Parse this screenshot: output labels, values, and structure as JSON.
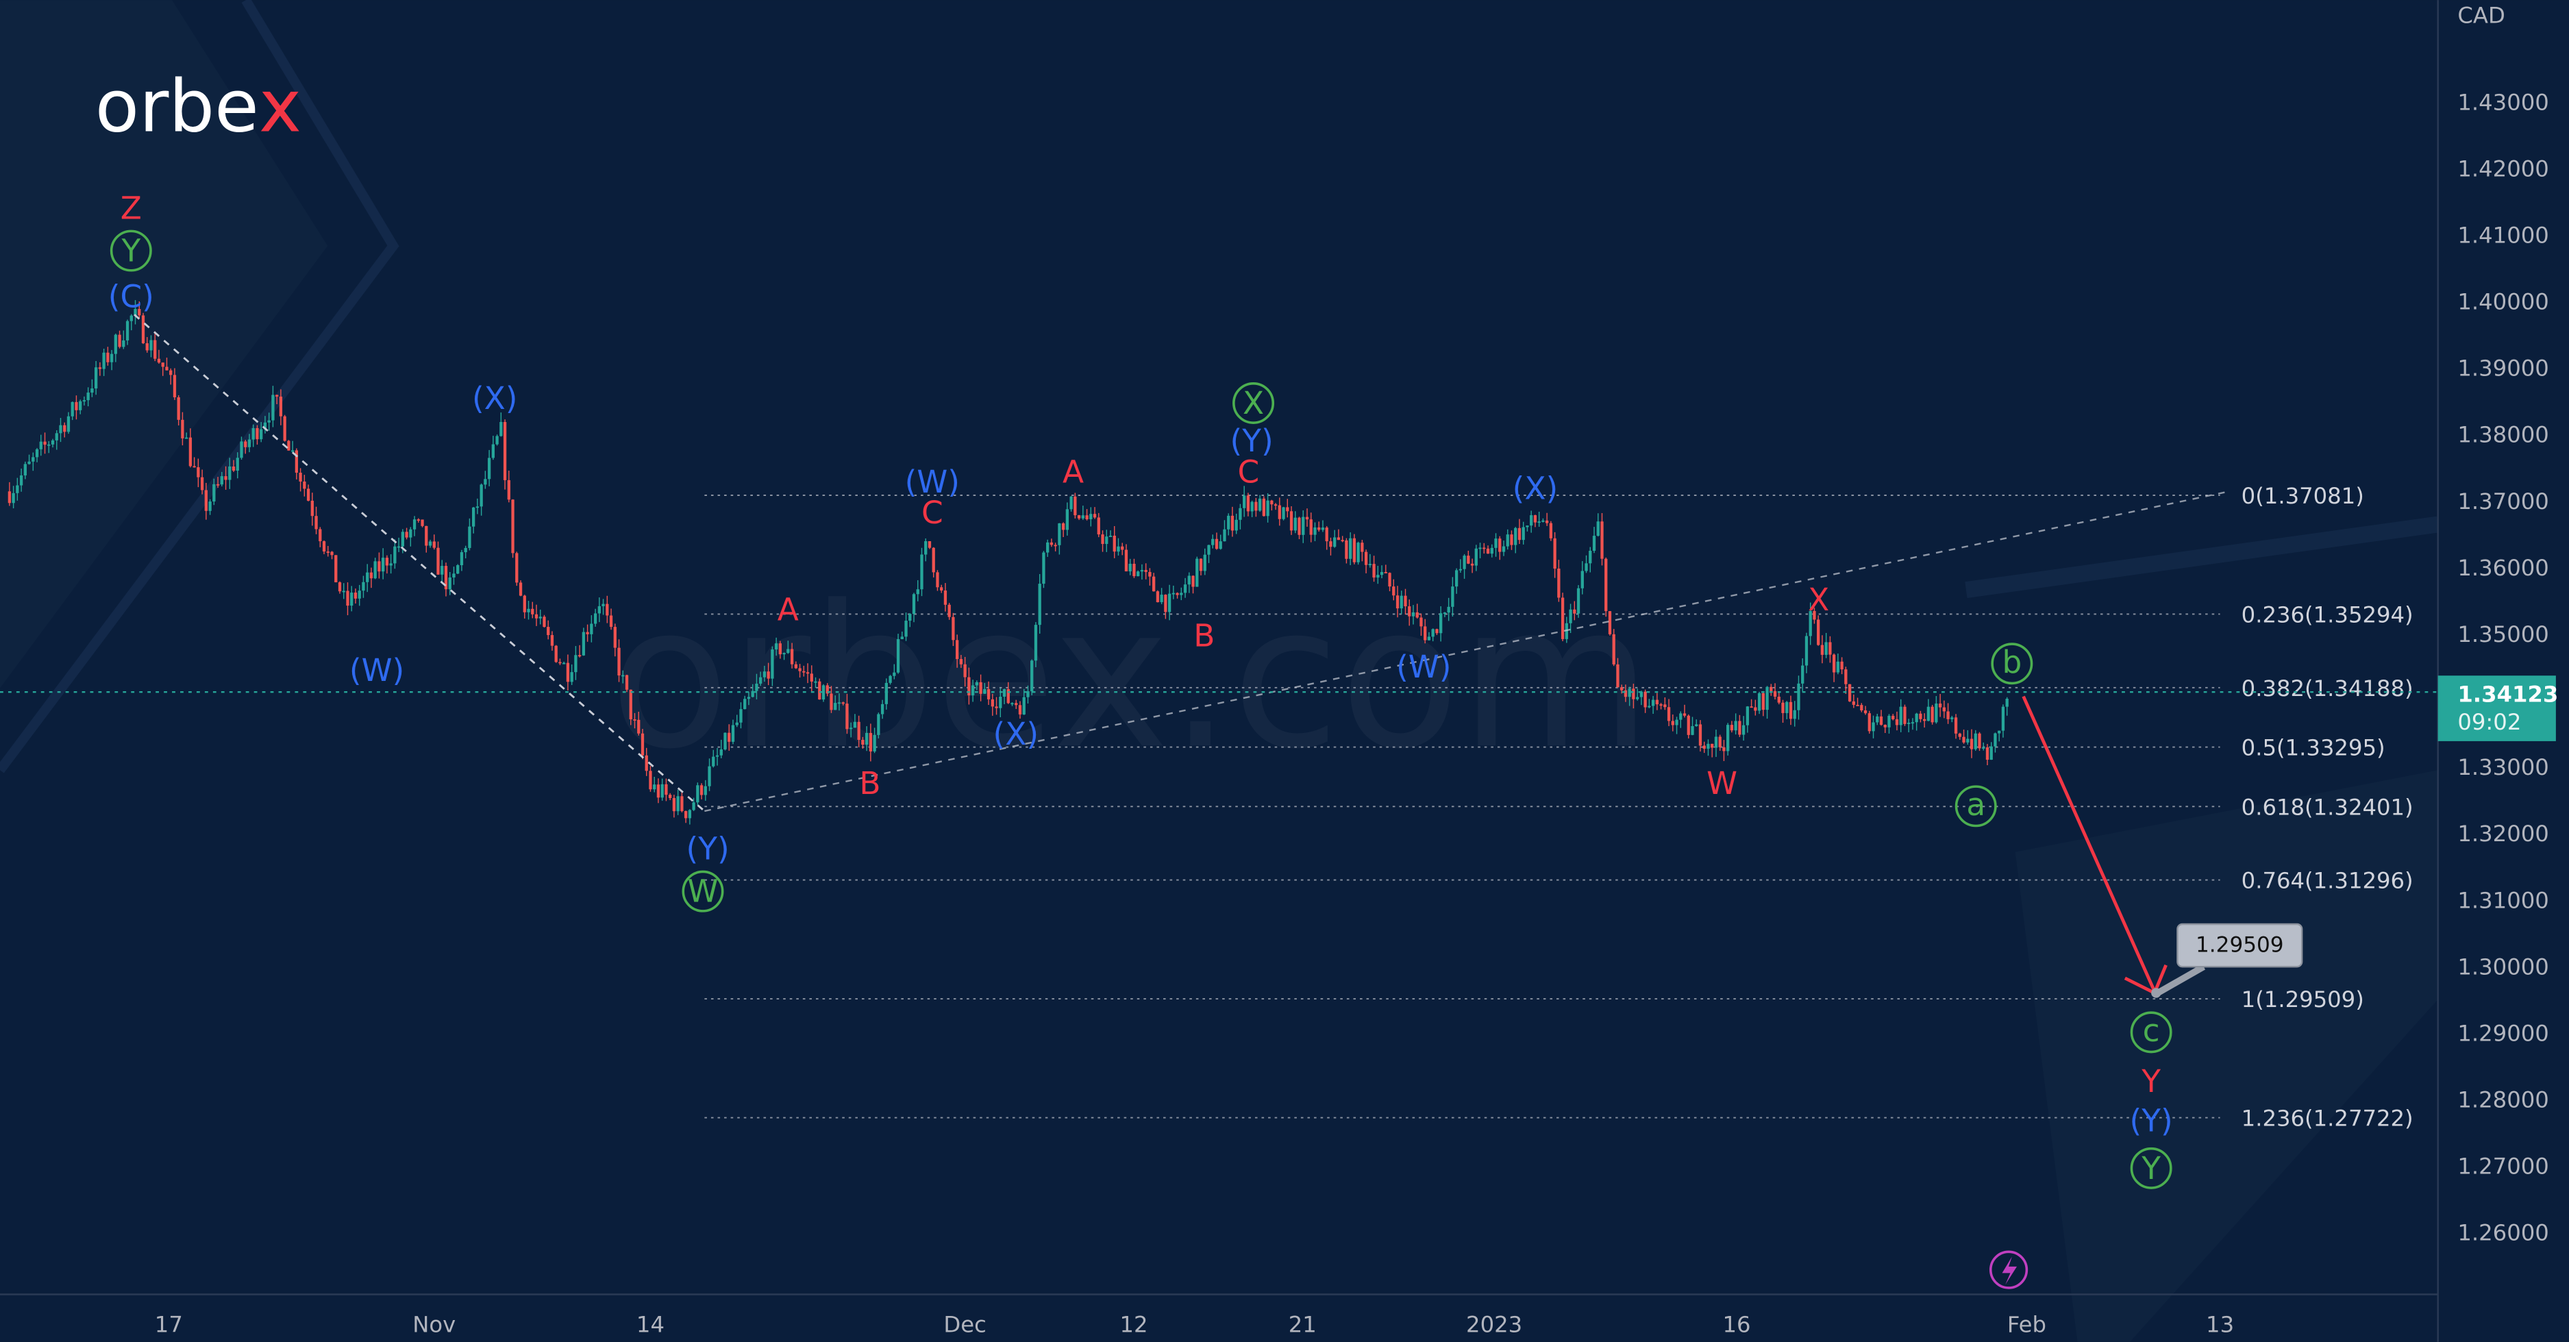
{
  "logo": {
    "text_main": "orbe",
    "text_accent": "x",
    "watermark": "orbex.com"
  },
  "colors": {
    "background": "#0a1e3b",
    "up": "#26a69a",
    "down": "#ef5350",
    "wave_red": "#f23645",
    "wave_blue": "#2f6af0",
    "wave_green": "#4caf50",
    "price_tag": "#26a69a",
    "arrow": "#f23645"
  },
  "chart_data": {
    "type": "candlestick",
    "currency_label": "CAD",
    "y_ticks": [
      "1.43000",
      "1.42000",
      "1.41000",
      "1.40000",
      "1.39000",
      "1.38000",
      "1.37000",
      "1.36000",
      "1.35000",
      "1.33000",
      "1.32000",
      "1.31000",
      "1.30000",
      "1.29000",
      "1.28000",
      "1.27000",
      "1.26000"
    ],
    "ylim": [
      1.255,
      1.44
    ],
    "x_ticks": [
      {
        "label": "17",
        "date": "2022-10-17"
      },
      {
        "label": "Nov",
        "date": "2022-11-01"
      },
      {
        "label": "14",
        "date": "2022-11-14"
      },
      {
        "label": "Dec",
        "date": "2022-12-01"
      },
      {
        "label": "12",
        "date": "2022-12-12"
      },
      {
        "label": "21",
        "date": "2022-12-21"
      },
      {
        "label": "2023",
        "date": "2023-01-02"
      },
      {
        "label": "16",
        "date": "2023-01-16"
      },
      {
        "label": "Feb",
        "date": "2023-02-01"
      },
      {
        "label": "13",
        "date": "2023-02-13"
      }
    ],
    "price_path": [
      [
        "2022-10-08",
        1.3714
      ],
      [
        "2022-10-12",
        1.3849
      ],
      [
        "2022-10-15",
        1.398
      ],
      [
        "2022-10-17",
        1.3886
      ],
      [
        "2022-10-19",
        1.3689
      ],
      [
        "2022-10-23",
        1.3849
      ],
      [
        "2022-10-27",
        1.3541
      ],
      [
        "2022-10-31",
        1.3664
      ],
      [
        "2022-11-02",
        1.3566
      ],
      [
        "2022-11-05",
        1.3807
      ],
      [
        "2022-11-06",
        1.3566
      ],
      [
        "2022-11-09",
        1.3443
      ],
      [
        "2022-11-11",
        1.3554
      ],
      [
        "2022-11-14",
        1.327
      ],
      [
        "2022-11-16",
        1.3233
      ],
      [
        "2022-11-21",
        1.348
      ],
      [
        "2022-11-26",
        1.3332
      ],
      [
        "2022-11-29",
        1.364
      ],
      [
        "2022-12-01",
        1.3418
      ],
      [
        "2022-12-05",
        1.3393
      ],
      [
        "2022-12-06",
        1.3615
      ],
      [
        "2022-12-08",
        1.3694
      ],
      [
        "2022-12-14",
        1.3541
      ],
      [
        "2022-12-18",
        1.3701
      ],
      [
        "2022-12-25",
        1.3615
      ],
      [
        "2022-12-29",
        1.3492
      ],
      [
        "2022-12-31",
        1.3603
      ],
      [
        "2023-01-05",
        1.3677
      ],
      [
        "2023-01-06",
        1.3492
      ],
      [
        "2023-01-08",
        1.366
      ],
      [
        "2023-01-09",
        1.3418
      ],
      [
        "2023-01-15",
        1.3332
      ],
      [
        "2023-01-18",
        1.3418
      ],
      [
        "2023-01-19",
        1.3369
      ],
      [
        "2023-01-20",
        1.3522
      ],
      [
        "2023-01-23",
        1.3369
      ],
      [
        "2023-01-27",
        1.3381
      ],
      [
        "2023-01-30",
        1.3315
      ],
      [
        "2023-01-31",
        1.34123
      ]
    ],
    "current_price": {
      "value": "1.34123",
      "countdown": "09:02",
      "price": 1.34123
    },
    "fib_levels": [
      {
        "label": "0(1.37081)",
        "price": 1.37081
      },
      {
        "label": "0.236(1.35294)",
        "price": 1.35294
      },
      {
        "label": "0.382(1.34188)",
        "price": 1.34188
      },
      {
        "label": "0.5(1.33295)",
        "price": 1.33295
      },
      {
        "label": "0.618(1.32401)",
        "price": 1.32401
      },
      {
        "label": "0.764(1.31296)",
        "price": 1.31296
      },
      {
        "label": "1(1.29509)",
        "price": 1.29509
      },
      {
        "label": "1.236(1.27722)",
        "price": 1.27722
      }
    ],
    "target_callout": "1.29509",
    "wave_labels": [
      "Z",
      "Y",
      "(C)",
      "(X)",
      "(W)",
      "(Y)",
      "W",
      "A",
      "B",
      "C",
      "(W)",
      "(X)",
      "A",
      "B",
      "C",
      "(Y)",
      "X",
      "(W)",
      "(X)",
      "X",
      "W",
      "b",
      "a",
      "c",
      "Y",
      "(Y)",
      "Y"
    ]
  },
  "icons": {
    "alert": "lightning-icon"
  }
}
